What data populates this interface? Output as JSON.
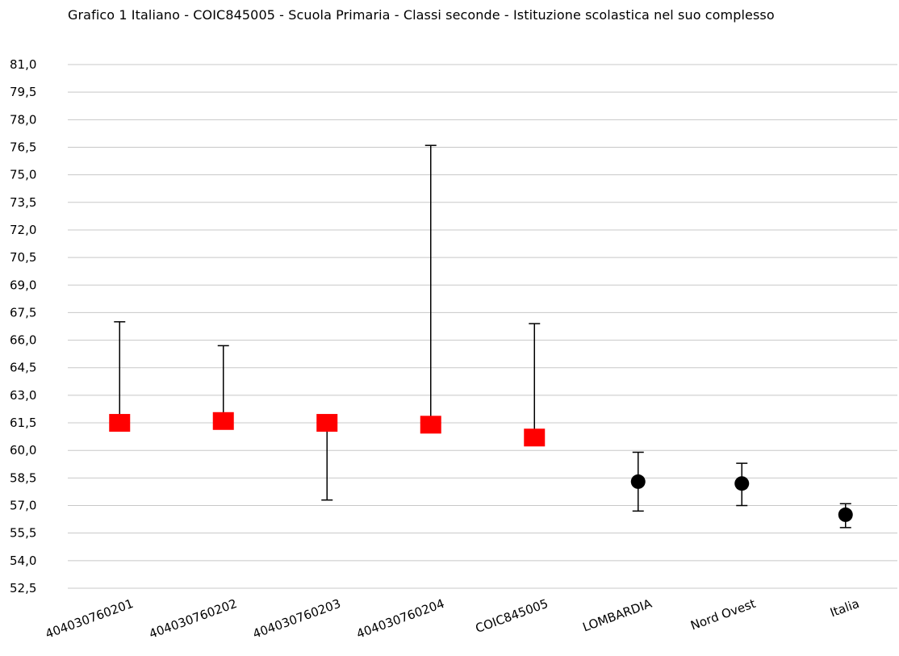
{
  "chart_data": {
    "type": "scatter",
    "title": "Grafico 1 Italiano - COIC845005 - Scuola Primaria - Classi seconde - Istituzione scolastica nel suo complesso",
    "xlabel": "",
    "ylabel": "",
    "ylim": [
      52.5,
      81.0
    ],
    "yticks": [
      "81,0",
      "79,5",
      "78,0",
      "76,5",
      "75,0",
      "73,5",
      "72,0",
      "70,5",
      "69,0",
      "67,5",
      "66,0",
      "64,5",
      "63,0",
      "61,5",
      "60,0",
      "58,5",
      "57,0",
      "55,5",
      "54,0",
      "52,5"
    ],
    "grid": true,
    "legend": "none",
    "categories": [
      "404030760201",
      "404030760202",
      "404030760203",
      "404030760204",
      "COIC845005",
      "LOMBARDIA",
      "Nord Ovest",
      "Italia"
    ],
    "points": [
      {
        "value": 61.5,
        "low": 61.6,
        "high": 67.0,
        "marker": "square",
        "color": "#ff0000"
      },
      {
        "value": 61.6,
        "low": 61.6,
        "high": 65.7,
        "marker": "square",
        "color": "#ff0000"
      },
      {
        "value": 61.5,
        "low": 57.3,
        "high": 61.5,
        "marker": "square",
        "color": "#ff0000"
      },
      {
        "value": 61.4,
        "low": 61.4,
        "high": 76.6,
        "marker": "square",
        "color": "#ff0000"
      },
      {
        "value": 60.7,
        "low": 60.7,
        "high": 66.9,
        "marker": "square",
        "color": "#ff0000"
      },
      {
        "value": 58.3,
        "low": 56.7,
        "high": 59.9,
        "marker": "circle",
        "color": "#000000"
      },
      {
        "value": 58.2,
        "low": 57.0,
        "high": 59.3,
        "marker": "circle",
        "color": "#000000"
      },
      {
        "value": 56.5,
        "low": 55.8,
        "high": 57.1,
        "marker": "circle",
        "color": "#000000"
      }
    ]
  }
}
